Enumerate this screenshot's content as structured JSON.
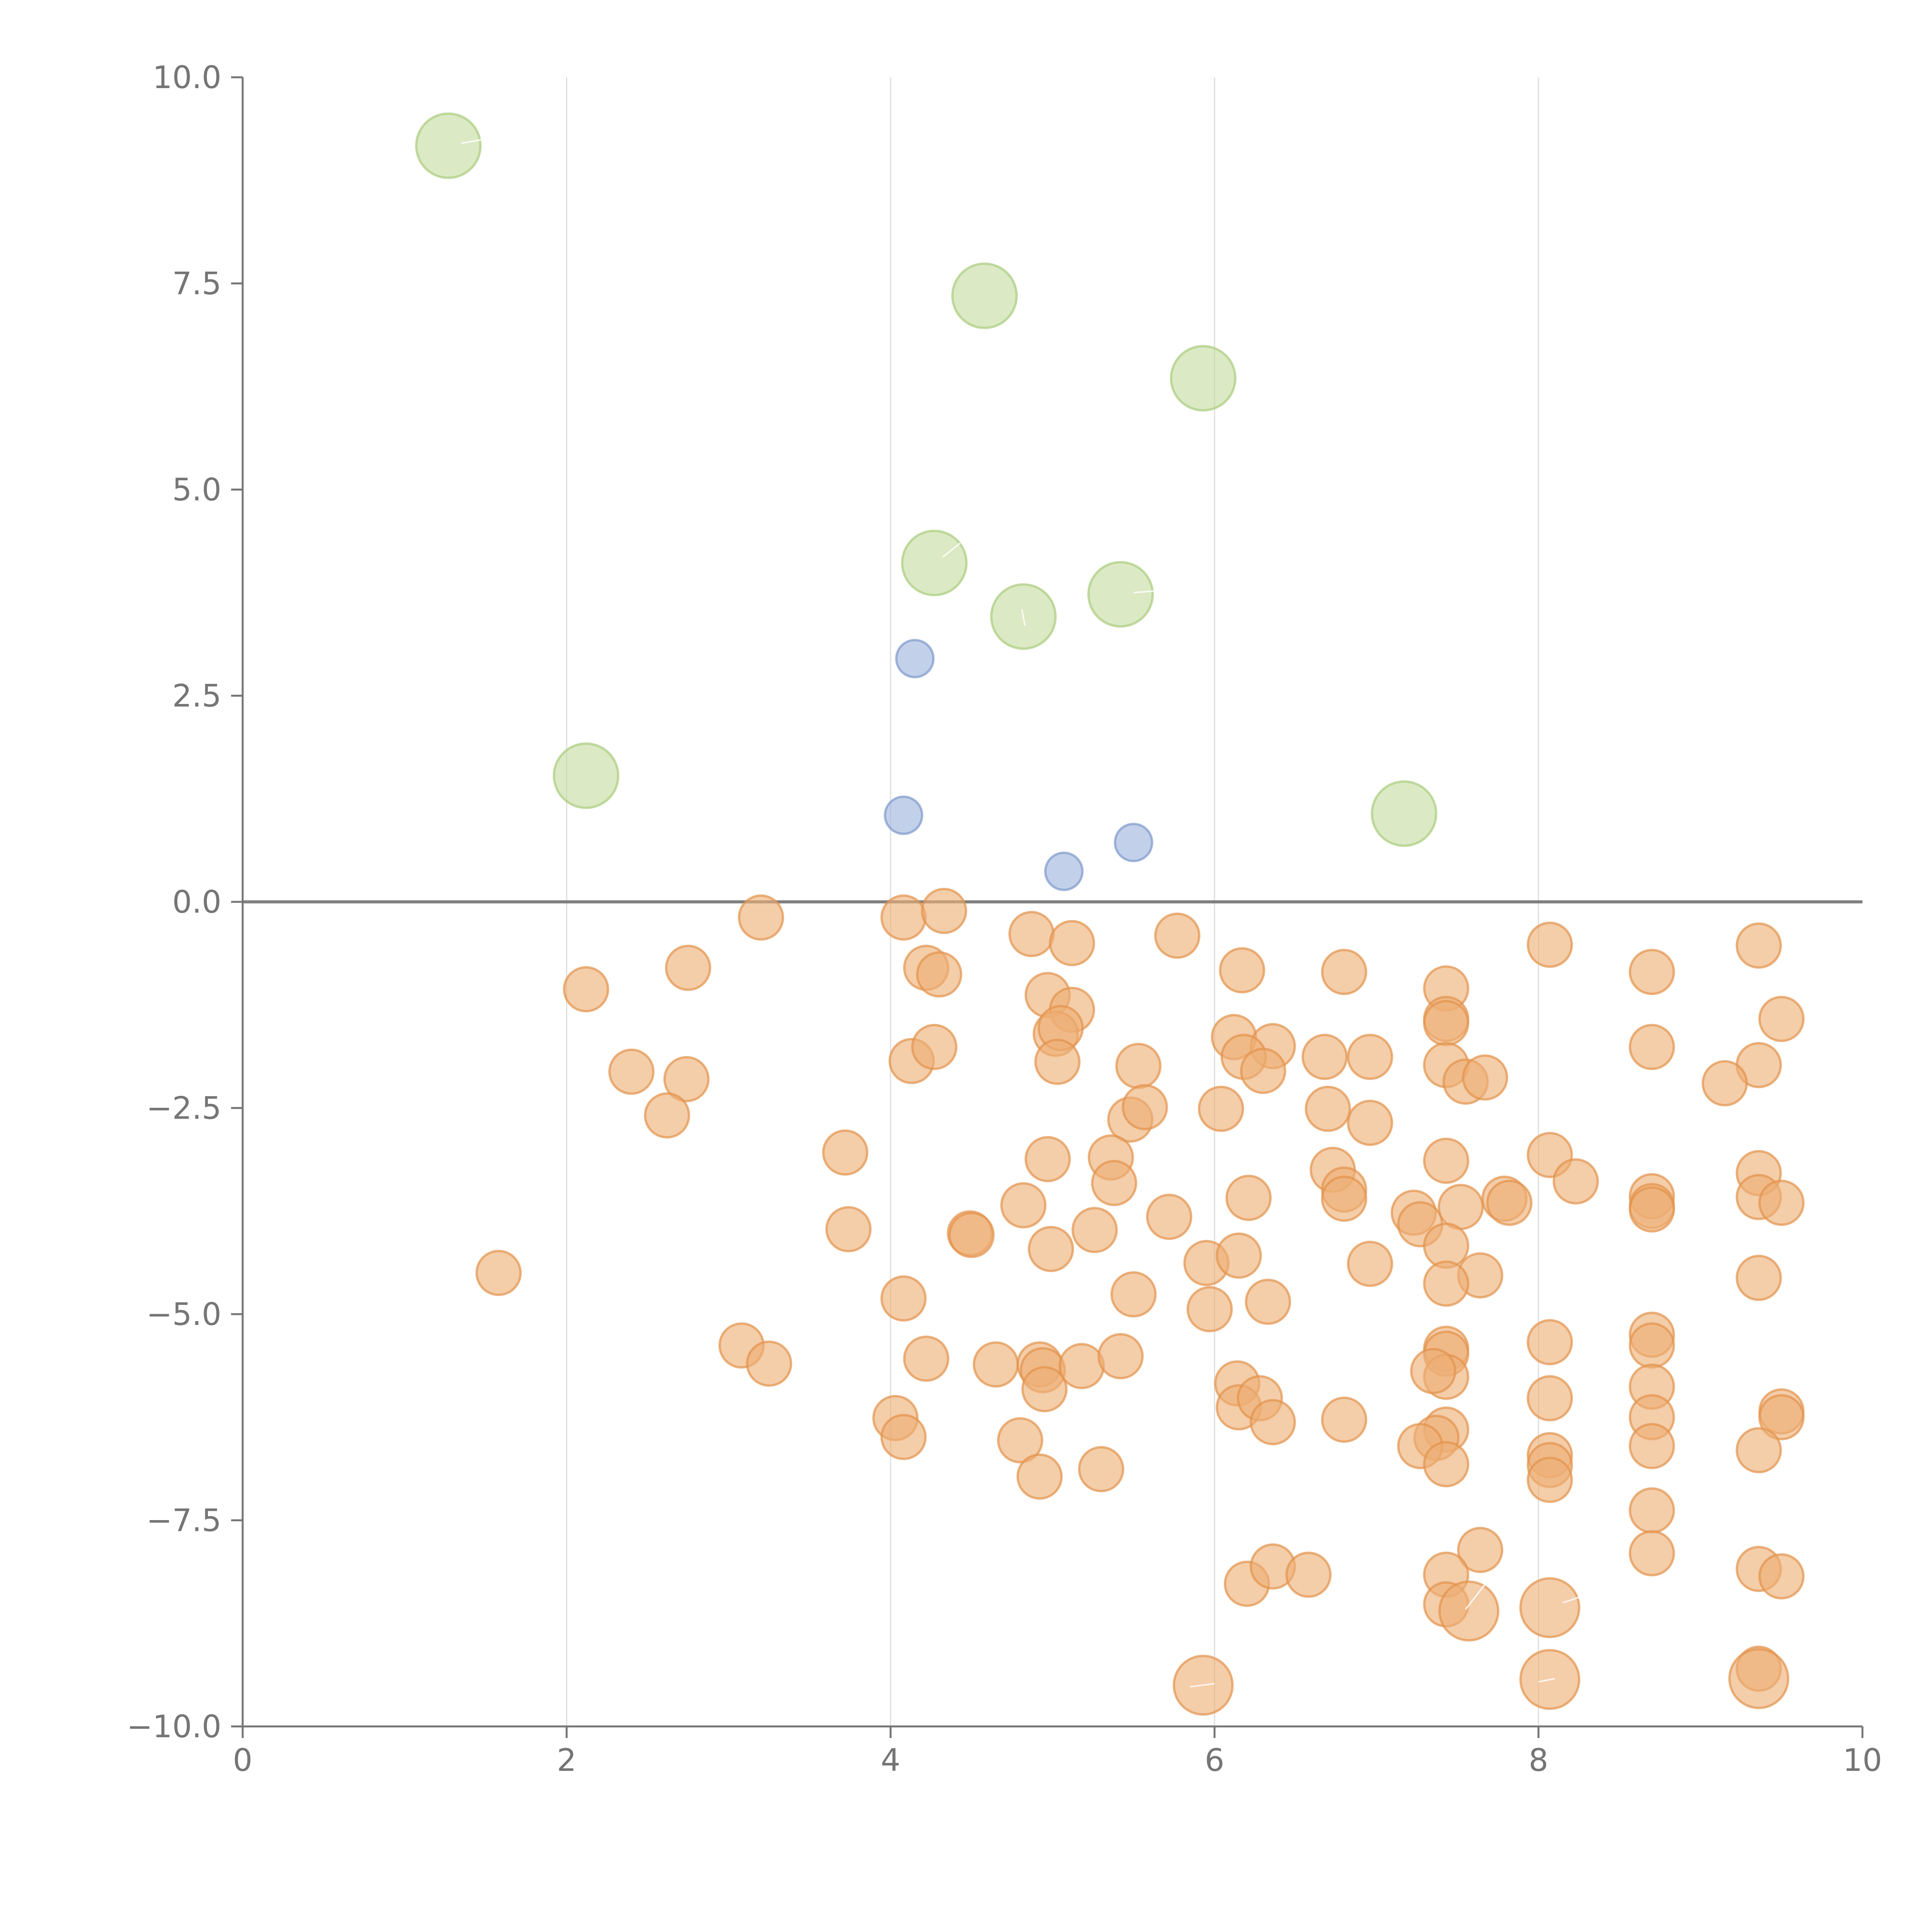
{
  "chart_data": {
    "type": "scatter",
    "title": "",
    "xlabel": "",
    "ylabel": "",
    "xlim": [
      0,
      10
    ],
    "ylim": [
      -10,
      10
    ],
    "x_ticks": [
      "0",
      "2",
      "4",
      "6",
      "8",
      "10"
    ],
    "y_ticks": [
      "10.0",
      "7.5",
      "5.0",
      "2.5",
      "0.0",
      "−2.5",
      "−5.0",
      "−7.5",
      "−10.0"
    ],
    "grid": "vertical",
    "zero_line": true,
    "colors": {
      "green": "#c5dca0",
      "green_stroke": "#a9cc7e",
      "blue": "#9db4dc",
      "blue_stroke": "#7d99cc",
      "orange": "#eeae75",
      "orange_stroke": "#e3934c",
      "axis": "#757575",
      "grid": "#dddddd",
      "zero_line": "#808080"
    },
    "series": [
      {
        "color_key": "green",
        "size": 3,
        "points": [
          [
            1.27,
            9.17
          ],
          [
            4.58,
            7.35
          ],
          [
            5.93,
            6.35
          ],
          [
            4.27,
            4.11
          ],
          [
            4.82,
            3.46
          ],
          [
            5.42,
            3.73
          ],
          [
            2.12,
            1.53
          ],
          [
            7.17,
            1.07
          ]
        ]
      },
      {
        "color_key": "blue",
        "size": 1,
        "points": [
          [
            4.15,
            2.95
          ],
          [
            4.08,
            1.05
          ],
          [
            5.07,
            0.37
          ],
          [
            5.5,
            0.72
          ]
        ]
      },
      {
        "color_key": "orange",
        "size": 1.4,
        "points": [
          [
            3.2,
            -0.19
          ],
          [
            4.08,
            -0.19
          ],
          [
            4.33,
            -0.11
          ],
          [
            4.87,
            -0.39
          ],
          [
            5.12,
            -0.5
          ],
          [
            5.77,
            -0.41
          ],
          [
            8.07,
            -0.52
          ],
          [
            9.36,
            -0.53
          ],
          [
            2.12,
            -1.06
          ],
          [
            2.75,
            -0.8
          ],
          [
            4.22,
            -0.8
          ],
          [
            4.3,
            -0.88
          ],
          [
            6.17,
            -0.83
          ],
          [
            6.8,
            -0.85
          ],
          [
            7.43,
            -1.05
          ],
          [
            8.7,
            -0.85
          ],
          [
            4.97,
            -1.13
          ],
          [
            5.12,
            -1.31
          ],
          [
            5.02,
            -1.6
          ],
          [
            5.05,
            -1.53
          ],
          [
            6.12,
            -1.64
          ],
          [
            6.36,
            -1.75
          ],
          [
            7.43,
            -1.42
          ],
          [
            7.43,
            -1.47
          ],
          [
            9.5,
            -1.42
          ],
          [
            2.4,
            -2.06
          ],
          [
            2.74,
            -2.15
          ],
          [
            4.13,
            -1.93
          ],
          [
            4.27,
            -1.76
          ],
          [
            5.03,
            -1.94
          ],
          [
            5.53,
            -1.99
          ],
          [
            6.18,
            -1.88
          ],
          [
            6.3,
            -2.05
          ],
          [
            6.68,
            -1.88
          ],
          [
            6.96,
            -1.88
          ],
          [
            7.43,
            -1.98
          ],
          [
            7.55,
            -2.18
          ],
          [
            7.67,
            -2.13
          ],
          [
            8.7,
            -1.76
          ],
          [
            9.36,
            -1.98
          ],
          [
            9.15,
            -2.2
          ],
          [
            2.62,
            -2.59
          ],
          [
            5.48,
            -2.64
          ],
          [
            5.57,
            -2.49
          ],
          [
            6.04,
            -2.51
          ],
          [
            6.7,
            -2.51
          ],
          [
            6.96,
            -2.68
          ],
          [
            3.72,
            -3.04
          ],
          [
            4.97,
            -3.12
          ],
          [
            5.36,
            -3.1
          ],
          [
            5.38,
            -3.41
          ],
          [
            6.73,
            -3.25
          ],
          [
            6.8,
            -3.49
          ],
          [
            7.43,
            -3.14
          ],
          [
            8.07,
            -3.07
          ],
          [
            8.23,
            -3.39
          ],
          [
            9.36,
            -3.29
          ],
          [
            6.21,
            -3.59
          ],
          [
            6.8,
            -3.6
          ],
          [
            7.23,
            -3.77
          ],
          [
            7.27,
            -3.91
          ],
          [
            7.52,
            -3.7
          ],
          [
            7.79,
            -3.6
          ],
          [
            7.82,
            -3.65
          ],
          [
            8.7,
            -3.57
          ],
          [
            8.7,
            -3.69
          ],
          [
            8.7,
            -3.73
          ],
          [
            9.36,
            -3.58
          ],
          [
            9.5,
            -3.65
          ],
          [
            3.74,
            -3.97
          ],
          [
            4.49,
            -4.02
          ],
          [
            4.5,
            -4.04
          ],
          [
            4.82,
            -3.68
          ],
          [
            4.99,
            -4.21
          ],
          [
            5.26,
            -3.98
          ],
          [
            5.72,
            -3.82
          ],
          [
            5.95,
            -4.38
          ],
          [
            6.15,
            -4.29
          ],
          [
            6.96,
            -4.39
          ],
          [
            7.43,
            -4.17
          ],
          [
            7.64,
            -4.53
          ],
          [
            9.36,
            -4.56
          ],
          [
            1.58,
            -4.5
          ],
          [
            4.08,
            -4.81
          ],
          [
            5.5,
            -4.76
          ],
          [
            5.97,
            -4.94
          ],
          [
            6.33,
            -4.85
          ],
          [
            7.43,
            -4.63
          ],
          [
            3.08,
            -5.38
          ],
          [
            3.25,
            -5.6
          ],
          [
            4.22,
            -5.54
          ],
          [
            4.65,
            -5.61
          ],
          [
            4.92,
            -5.61
          ],
          [
            4.94,
            -5.68
          ],
          [
            4.95,
            -5.91
          ],
          [
            5.18,
            -5.63
          ],
          [
            5.42,
            -5.51
          ],
          [
            6.14,
            -5.84
          ],
          [
            7.43,
            -5.42
          ],
          [
            7.43,
            -5.48
          ],
          [
            7.43,
            -5.76
          ],
          [
            7.35,
            -5.69
          ],
          [
            8.07,
            -5.34
          ],
          [
            8.7,
            -5.25
          ],
          [
            8.7,
            -5.38
          ],
          [
            8.7,
            -5.88
          ],
          [
            4.03,
            -6.26
          ],
          [
            4.08,
            -6.49
          ],
          [
            4.8,
            -6.53
          ],
          [
            6.15,
            -6.13
          ],
          [
            6.28,
            -6.02
          ],
          [
            6.36,
            -6.31
          ],
          [
            6.8,
            -6.28
          ],
          [
            7.43,
            -6.4
          ],
          [
            7.37,
            -6.5
          ],
          [
            7.27,
            -6.6
          ],
          [
            8.07,
            -6.02
          ],
          [
            8.7,
            -6.25
          ],
          [
            8.7,
            -6.6
          ],
          [
            9.5,
            -6.18
          ],
          [
            9.5,
            -6.25
          ],
          [
            9.36,
            -6.65
          ],
          [
            4.92,
            -6.97
          ],
          [
            5.3,
            -6.88
          ],
          [
            7.43,
            -6.82
          ],
          [
            8.07,
            -6.71
          ],
          [
            8.07,
            -6.83
          ],
          [
            8.07,
            -7.01
          ],
          [
            8.7,
            -7.38
          ],
          [
            7.64,
            -7.86
          ],
          [
            8.7,
            -7.9
          ],
          [
            6.2,
            -8.27
          ],
          [
            6.36,
            -8.06
          ],
          [
            6.58,
            -8.16
          ],
          [
            7.43,
            -8.16
          ],
          [
            7.43,
            -8.52
          ],
          [
            9.36,
            -8.09
          ],
          [
            9.5,
            -8.18
          ],
          [
            9.36,
            -9.3
          ]
        ]
      },
      {
        "color_key": "orange",
        "size": 2.5,
        "points": [
          [
            7.57,
            -8.6
          ],
          [
            8.07,
            -8.56
          ],
          [
            5.93,
            -9.5
          ],
          [
            8.07,
            -9.43
          ],
          [
            9.36,
            -9.42
          ]
        ]
      }
    ]
  }
}
